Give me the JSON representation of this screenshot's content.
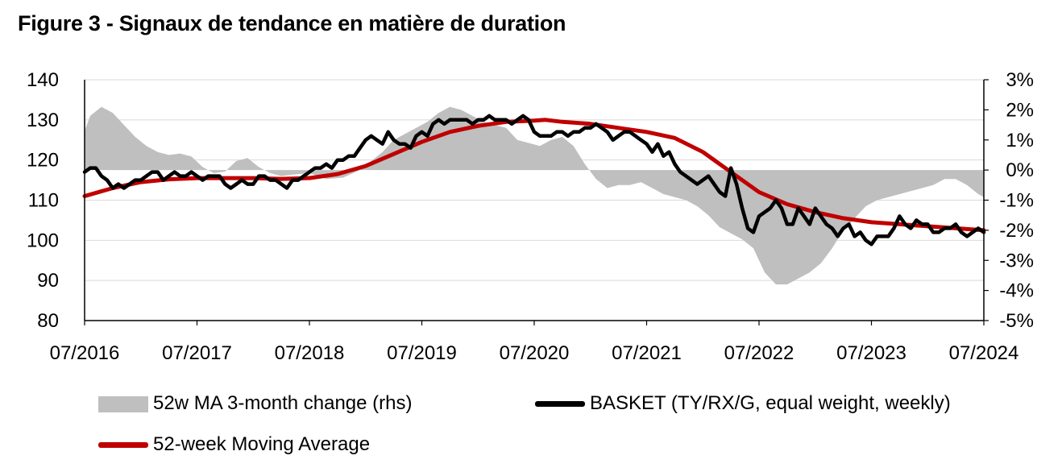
{
  "chart_data": {
    "type": "line",
    "title": "Figure 3 - Signaux de tendance en matière de duration",
    "x_tick_labels": [
      "07/2016",
      "07/2017",
      "07/2018",
      "07/2019",
      "07/2020",
      "07/2021",
      "07/2022",
      "07/2023",
      "07/2024"
    ],
    "y_left": {
      "ticks": [
        "140",
        "130",
        "120",
        "110",
        "100",
        "90",
        "80"
      ],
      "ylim": [
        80,
        140
      ]
    },
    "y_right": {
      "ticks": [
        "3%",
        "2%",
        "1%",
        "0%",
        "-1%",
        "-2%",
        "-3%",
        "-4%",
        "-5%"
      ],
      "ylim": [
        -5,
        3
      ]
    },
    "x_range": [
      2016.5,
      2024.5
    ],
    "colors": {
      "area": "#bfbfbf",
      "basket": "#000000",
      "ma": "#c00000",
      "grid": "#d9d9d9"
    },
    "series": [
      {
        "name": "52w MA 3-month change (rhs)",
        "axis": "right",
        "type": "area",
        "x": [
          2016.5,
          2016.55,
          2016.65,
          2016.75,
          2016.85,
          2016.95,
          2017.05,
          2017.15,
          2017.25,
          2017.35,
          2017.45,
          2017.55,
          2017.65,
          2017.75,
          2017.85,
          2017.95,
          2018.05,
          2018.15,
          2018.25,
          2018.35,
          2018.5,
          2018.65,
          2018.8,
          2018.95,
          2019.05,
          2019.15,
          2019.25,
          2019.35,
          2019.45,
          2019.55,
          2019.65,
          2019.75,
          2019.85,
          2019.95,
          2020.05,
          2020.15,
          2020.25,
          2020.35,
          2020.45,
          2020.55,
          2020.65,
          2020.75,
          2020.85,
          2020.95,
          2021.05,
          2021.15,
          2021.25,
          2021.35,
          2021.45,
          2021.55,
          2021.65,
          2021.75,
          2021.85,
          2021.95,
          2022.05,
          2022.15,
          2022.25,
          2022.35,
          2022.45,
          2022.55,
          2022.65,
          2022.75,
          2022.85,
          2022.95,
          2023.05,
          2023.15,
          2023.25,
          2023.35,
          2023.45,
          2023.55,
          2023.65,
          2023.75,
          2023.85,
          2023.95,
          2024.05,
          2024.15,
          2024.25,
          2024.35,
          2024.45,
          2024.5
        ],
        "values": [
          1.3,
          1.8,
          2.1,
          1.9,
          1.5,
          1.1,
          0.8,
          0.6,
          0.5,
          0.55,
          0.45,
          0.1,
          -0.1,
          -0.05,
          0.3,
          0.4,
          0.1,
          -0.1,
          -0.2,
          -0.15,
          -0.1,
          -0.3,
          -0.25,
          0.0,
          0.3,
          0.6,
          1.0,
          1.2,
          1.4,
          1.6,
          1.9,
          2.1,
          2.0,
          1.8,
          1.6,
          1.5,
          1.4,
          1.0,
          0.9,
          0.8,
          1.0,
          1.1,
          0.8,
          0.2,
          -0.3,
          -0.6,
          -0.5,
          -0.5,
          -0.4,
          -0.6,
          -0.8,
          -0.9,
          -1.0,
          -1.2,
          -1.5,
          -1.9,
          -2.1,
          -2.3,
          -2.6,
          -3.4,
          -3.8,
          -3.8,
          -3.6,
          -3.4,
          -3.1,
          -2.6,
          -2.0,
          -1.6,
          -1.2,
          -1.0,
          -0.9,
          -0.8,
          -0.7,
          -0.6,
          -0.5,
          -0.3,
          -0.3,
          -0.5,
          -0.8,
          -0.9
        ]
      },
      {
        "name": "BASKET (TY/RX/G, equal weight, weekly)",
        "axis": "left",
        "type": "line",
        "x": [
          2016.5,
          2016.55,
          2016.6,
          2016.65,
          2016.7,
          2016.75,
          2016.8,
          2016.85,
          2016.9,
          2016.95,
          2017.0,
          2017.05,
          2017.1,
          2017.15,
          2017.2,
          2017.25,
          2017.3,
          2017.35,
          2017.4,
          2017.45,
          2017.5,
          2017.55,
          2017.6,
          2017.65,
          2017.7,
          2017.75,
          2017.8,
          2017.85,
          2017.9,
          2017.95,
          2018.0,
          2018.05,
          2018.1,
          2018.15,
          2018.2,
          2018.25,
          2018.3,
          2018.35,
          2018.4,
          2018.45,
          2018.5,
          2018.55,
          2018.6,
          2018.65,
          2018.7,
          2018.75,
          2018.8,
          2018.85,
          2018.9,
          2018.95,
          2019.0,
          2019.05,
          2019.1,
          2019.15,
          2019.2,
          2019.25,
          2019.3,
          2019.35,
          2019.4,
          2019.45,
          2019.5,
          2019.55,
          2019.6,
          2019.65,
          2019.7,
          2019.75,
          2019.8,
          2019.85,
          2019.9,
          2019.95,
          2020.0,
          2020.05,
          2020.1,
          2020.15,
          2020.2,
          2020.25,
          2020.3,
          2020.35,
          2020.4,
          2020.45,
          2020.5,
          2020.55,
          2020.6,
          2020.65,
          2020.7,
          2020.75,
          2020.8,
          2020.85,
          2020.9,
          2020.95,
          2021.0,
          2021.05,
          2021.1,
          2021.15,
          2021.2,
          2021.25,
          2021.3,
          2021.35,
          2021.4,
          2021.45,
          2021.5,
          2021.55,
          2021.6,
          2021.65,
          2021.7,
          2021.75,
          2021.8,
          2021.85,
          2021.9,
          2021.95,
          2022.0,
          2022.05,
          2022.1,
          2022.15,
          2022.2,
          2022.25,
          2022.3,
          2022.35,
          2022.4,
          2022.45,
          2022.5,
          2022.55,
          2022.6,
          2022.65,
          2022.7,
          2022.75,
          2022.8,
          2022.85,
          2022.9,
          2022.95,
          2023.0,
          2023.05,
          2023.1,
          2023.15,
          2023.2,
          2023.25,
          2023.3,
          2023.35,
          2023.4,
          2023.45,
          2023.5,
          2023.55,
          2023.6,
          2023.65,
          2023.7,
          2023.75,
          2023.8,
          2023.85,
          2023.9,
          2023.95,
          2024.0,
          2024.05,
          2024.1,
          2024.15,
          2024.2,
          2024.25,
          2024.3,
          2024.35,
          2024.4,
          2024.45,
          2024.5
        ],
        "values": [
          117,
          118,
          118,
          116,
          115,
          113,
          114,
          113,
          114,
          115,
          115,
          116,
          117,
          117,
          115,
          116,
          117,
          116,
          116,
          117,
          116,
          115,
          116,
          116,
          116,
          114,
          113,
          114,
          115,
          114,
          114,
          116,
          116,
          115,
          115,
          114,
          113,
          115,
          115,
          116,
          117,
          118,
          118,
          119,
          118,
          120,
          120,
          121,
          121,
          123,
          125,
          126,
          125,
          124,
          127,
          125,
          124,
          124,
          123,
          126,
          127,
          126,
          129,
          130,
          129,
          130,
          130,
          130,
          130,
          129,
          130,
          130,
          131,
          130,
          130,
          130,
          129,
          130,
          131,
          130,
          127,
          126,
          126,
          126,
          127,
          127,
          126,
          127,
          127,
          128,
          128,
          129,
          128,
          127,
          125,
          126,
          127,
          127,
          126,
          125,
          124,
          122,
          124,
          121,
          122,
          119,
          117,
          116,
          115,
          114,
          115,
          116,
          114,
          112,
          111,
          118,
          114,
          108,
          103,
          102,
          106,
          107,
          108,
          110,
          108,
          104,
          104,
          108,
          106,
          104,
          108,
          106,
          104,
          103,
          101,
          103,
          104,
          101,
          102,
          100,
          99,
          101,
          101,
          101,
          103,
          106,
          104,
          103,
          105,
          104,
          104,
          102,
          102,
          103,
          103,
          104,
          102,
          101,
          102,
          103,
          102
        ]
      },
      {
        "name": "52-week Moving Average",
        "axis": "left",
        "type": "line",
        "x": [
          2016.5,
          2016.75,
          2017.0,
          2017.25,
          2017.5,
          2017.75,
          2018.0,
          2018.25,
          2018.5,
          2018.75,
          2019.0,
          2019.25,
          2019.5,
          2019.75,
          2020.0,
          2020.25,
          2020.5,
          2020.6,
          2020.75,
          2021.0,
          2021.25,
          2021.5,
          2021.75,
          2022.0,
          2022.25,
          2022.5,
          2022.75,
          2023.0,
          2023.25,
          2023.5,
          2023.75,
          2024.0,
          2024.25,
          2024.5
        ],
        "values": [
          111,
          113,
          114.5,
          115.2,
          115.5,
          115.5,
          115.5,
          115.3,
          115.5,
          116.5,
          118.5,
          121.5,
          124.5,
          127,
          128.5,
          129.5,
          129.8,
          130,
          129.5,
          129,
          128,
          127,
          125.5,
          122,
          117,
          112,
          109,
          107,
          105.5,
          104.5,
          104,
          103.5,
          103,
          102.5
        ]
      }
    ]
  },
  "legend": {
    "area_label": "52w MA 3-month change (rhs)",
    "basket_label": "BASKET (TY/RX/G, equal weight, weekly)",
    "ma_label": "52-week Moving Average"
  }
}
